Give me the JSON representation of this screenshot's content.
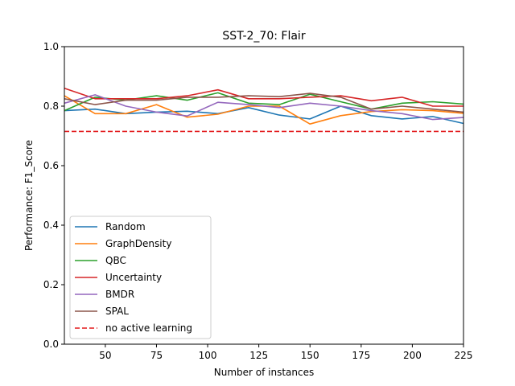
{
  "chart_data": {
    "type": "line",
    "title": "SST-2_70: Flair",
    "xlabel": "Number of instances",
    "ylabel": "Performance: F1_Score",
    "xlim": [
      30,
      225
    ],
    "ylim": [
      0.0,
      1.0
    ],
    "xticks": [
      50,
      75,
      100,
      125,
      150,
      175,
      200,
      225
    ],
    "yticks": [
      0.0,
      0.2,
      0.4,
      0.6,
      0.8,
      1.0
    ],
    "ytick_labels": [
      "0.0",
      "0.2",
      "0.4",
      "0.6",
      "0.8",
      "1.0"
    ],
    "grid": false,
    "legend_position": "lower-left",
    "x": [
      30,
      45,
      60,
      75,
      90,
      105,
      120,
      135,
      150,
      165,
      180,
      195,
      210,
      225
    ],
    "series": [
      {
        "name": "Random",
        "color": "#1f77b4",
        "style": "solid",
        "values": [
          0.785,
          0.79,
          0.775,
          0.78,
          0.783,
          0.775,
          0.795,
          0.77,
          0.757,
          0.8,
          0.768,
          0.757,
          0.765,
          0.742
        ]
      },
      {
        "name": "GraphDensity",
        "color": "#ff7f0e",
        "style": "solid",
        "values": [
          0.835,
          0.775,
          0.775,
          0.805,
          0.763,
          0.773,
          0.8,
          0.8,
          0.74,
          0.768,
          0.782,
          0.788,
          0.785,
          0.776
        ]
      },
      {
        "name": "QBC",
        "color": "#2ca02c",
        "style": "solid",
        "values": [
          0.785,
          0.83,
          0.82,
          0.835,
          0.82,
          0.845,
          0.81,
          0.805,
          0.84,
          0.815,
          0.79,
          0.81,
          0.815,
          0.807
        ]
      },
      {
        "name": "Uncertainty",
        "color": "#d62728",
        "style": "solid",
        "values": [
          0.86,
          0.825,
          0.825,
          0.825,
          0.835,
          0.855,
          0.825,
          0.825,
          0.83,
          0.835,
          0.818,
          0.83,
          0.8,
          0.8
        ]
      },
      {
        "name": "BMDR",
        "color": "#9467bd",
        "style": "solid",
        "values": [
          0.81,
          0.838,
          0.8,
          0.78,
          0.767,
          0.813,
          0.805,
          0.795,
          0.81,
          0.8,
          0.785,
          0.775,
          0.755,
          0.762
        ]
      },
      {
        "name": "SPAL",
        "color": "#8c564b",
        "style": "solid",
        "values": [
          0.825,
          0.805,
          0.82,
          0.82,
          0.83,
          0.83,
          0.835,
          0.832,
          0.843,
          0.83,
          0.79,
          0.8,
          0.79,
          0.78
        ]
      },
      {
        "name": "no active learning",
        "color": "#e31a1c",
        "style": "dashed",
        "values": [
          0.715,
          0.715,
          0.715,
          0.715,
          0.715,
          0.715,
          0.715,
          0.715,
          0.715,
          0.715,
          0.715,
          0.715,
          0.715,
          0.715
        ]
      }
    ]
  }
}
